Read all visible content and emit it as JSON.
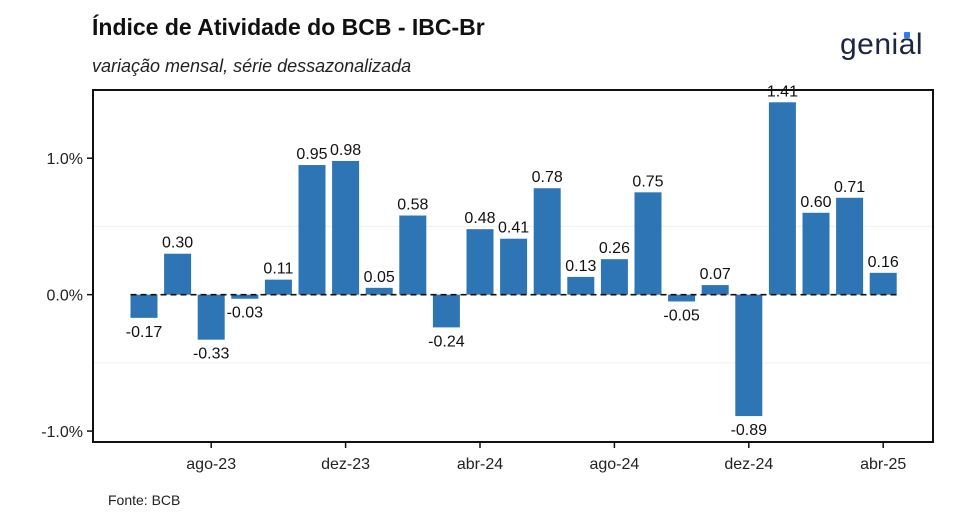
{
  "header": {
    "title": "Índice de Atividade do BCB - IBC-Br",
    "subtitle": "variação mensal, série dessazonalizada",
    "logo_text": "genial"
  },
  "footer": {
    "source": "Fonte: BCB"
  },
  "colors": {
    "bar": "#2e75b6",
    "logo": "#1c2541",
    "logo_accent": "#2e7cf6"
  },
  "chart_data": {
    "type": "bar",
    "title": "Índice de Atividade do BCB - IBC-Br",
    "subtitle": "variação mensal, série dessazonalizada",
    "categories": [
      "jun-23",
      "jul-23",
      "ago-23",
      "set-23",
      "out-23",
      "nov-23",
      "dez-23",
      "jan-24",
      "fev-24",
      "mar-24",
      "abr-24",
      "mai-24",
      "jun-24",
      "jul-24",
      "ago-24",
      "set-24",
      "out-24",
      "nov-24",
      "dez-24",
      "jan-25",
      "fev-25",
      "mar-25",
      "abr-25"
    ],
    "values": [
      -0.17,
      0.3,
      -0.33,
      -0.03,
      0.11,
      0.95,
      0.98,
      0.05,
      0.58,
      -0.24,
      0.48,
      0.41,
      0.78,
      0.13,
      0.26,
      0.75,
      -0.05,
      0.07,
      -0.89,
      1.41,
      0.6,
      0.71,
      0.16
    ],
    "value_labels": [
      "-0.17",
      "0.30",
      "-0.33",
      "-0.03",
      "0.11",
      "0.95",
      "0.98",
      "0.05",
      "0.58",
      "-0.24",
      "0.48",
      "0.41",
      "0.78",
      "0.13",
      "0.26",
      "0.75",
      "-0.05",
      "0.07",
      "-0.89",
      "1.41",
      "0.60",
      "0.71",
      "0.16"
    ],
    "x_tick_labels": [
      {
        "category": "ago-23",
        "label": "ago-23"
      },
      {
        "category": "dez-23",
        "label": "dez-23"
      },
      {
        "category": "abr-24",
        "label": "abr-24"
      },
      {
        "category": "ago-24",
        "label": "ago-24"
      },
      {
        "category": "dez-24",
        "label": "dez-24"
      },
      {
        "category": "abr-25",
        "label": "abr-25"
      }
    ],
    "y_ticks": [
      {
        "value": -1.0,
        "label": "-1.0%"
      },
      {
        "value": 0.0,
        "label": "0.0%"
      },
      {
        "value": 1.0,
        "label": "1.0%"
      }
    ],
    "ylim": [
      -1.08,
      1.5
    ],
    "xlabel": "",
    "ylabel": "",
    "zero_line": "dashed",
    "grid": false,
    "legend": "none"
  }
}
